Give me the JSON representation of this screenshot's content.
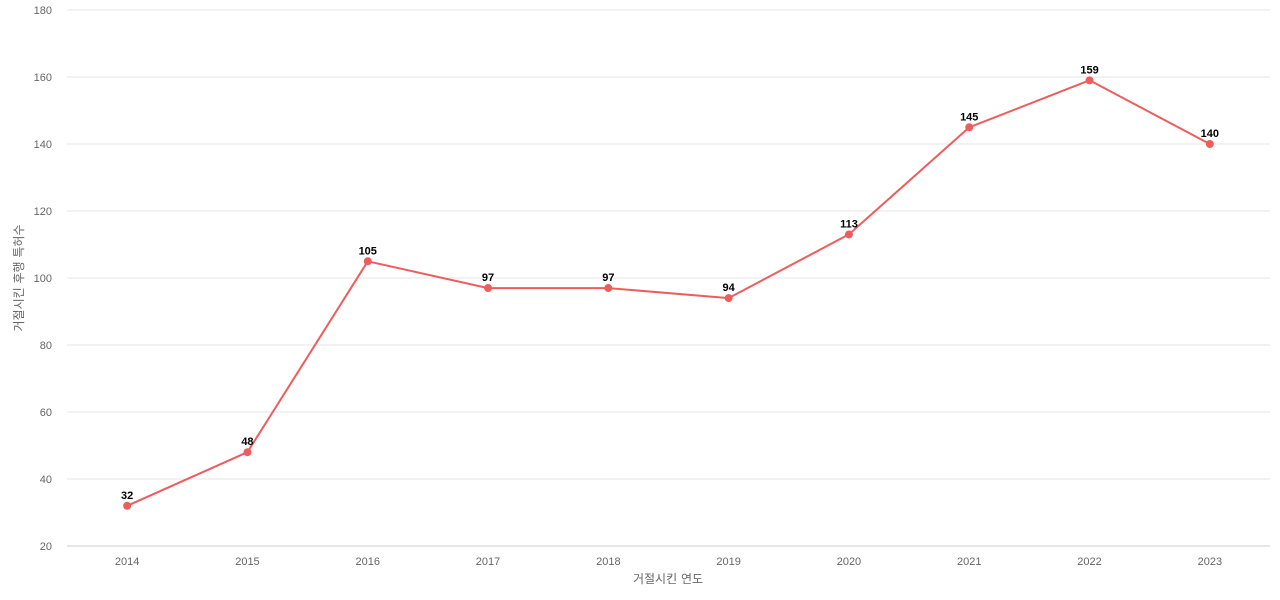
{
  "chart_data": {
    "type": "line",
    "title": "",
    "xlabel": "거절시킨 연도",
    "ylabel": "거절시킨 후행 특허수",
    "categories": [
      "2014",
      "2015",
      "2016",
      "2017",
      "2018",
      "2019",
      "2020",
      "2021",
      "2022",
      "2023"
    ],
    "series": [
      {
        "values": [
          32,
          48,
          105,
          97,
          97,
          94,
          113,
          145,
          159,
          140
        ],
        "color": "#ee5d5d"
      }
    ],
    "ylim": [
      20,
      180
    ],
    "yticks": [
      20,
      40,
      60,
      80,
      100,
      120,
      140,
      160,
      180
    ],
    "grid": true,
    "legend": "none",
    "data_labels": true
  }
}
